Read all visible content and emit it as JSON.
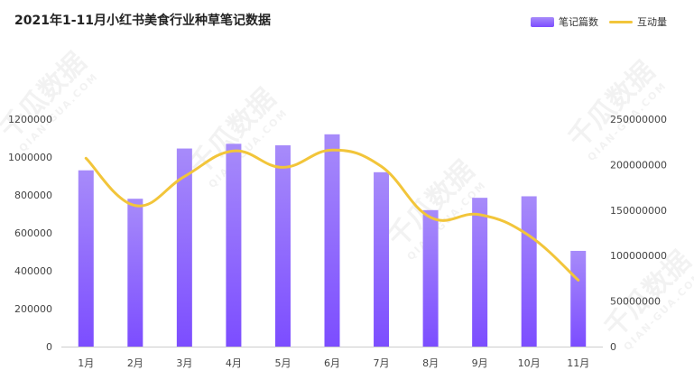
{
  "title": "2021年1-11月小红书美食行业种草笔记数据",
  "watermark": {
    "text": "千瓜数据",
    "url": "QIAN-GUA.COM"
  },
  "legend": {
    "bar_label": "笔记篇数",
    "line_label": "互动量"
  },
  "colors": {
    "bar_top": "#a78bfa",
    "bar_bottom": "#7c4dff",
    "line": "#f2c53a"
  },
  "chart_data": {
    "type": "bar+line",
    "categories": [
      "1月",
      "2月",
      "3月",
      "4月",
      "5月",
      "6月",
      "7月",
      "8月",
      "9月",
      "10月",
      "11月"
    ],
    "series": [
      {
        "name": "笔记篇数",
        "type": "bar",
        "axis": "left",
        "values": [
          930000,
          780000,
          1045000,
          1070000,
          1062000,
          1120000,
          920000,
          720000,
          785000,
          793000,
          505000
        ]
      },
      {
        "name": "互动量",
        "type": "line",
        "axis": "right",
        "values": [
          207000000,
          155000000,
          187000000,
          215000000,
          197000000,
          216000000,
          198000000,
          142000000,
          145000000,
          122000000,
          73000000
        ]
      }
    ],
    "y_left": {
      "min": 0,
      "max": 1200000,
      "ticks": [
        0,
        200000,
        400000,
        600000,
        800000,
        1000000,
        1200000
      ]
    },
    "y_right": {
      "min": 0,
      "max": 250000000,
      "ticks": [
        0,
        50000000,
        100000000,
        150000000,
        200000000,
        250000000
      ]
    },
    "grid": false,
    "legend_position": "top-right"
  }
}
